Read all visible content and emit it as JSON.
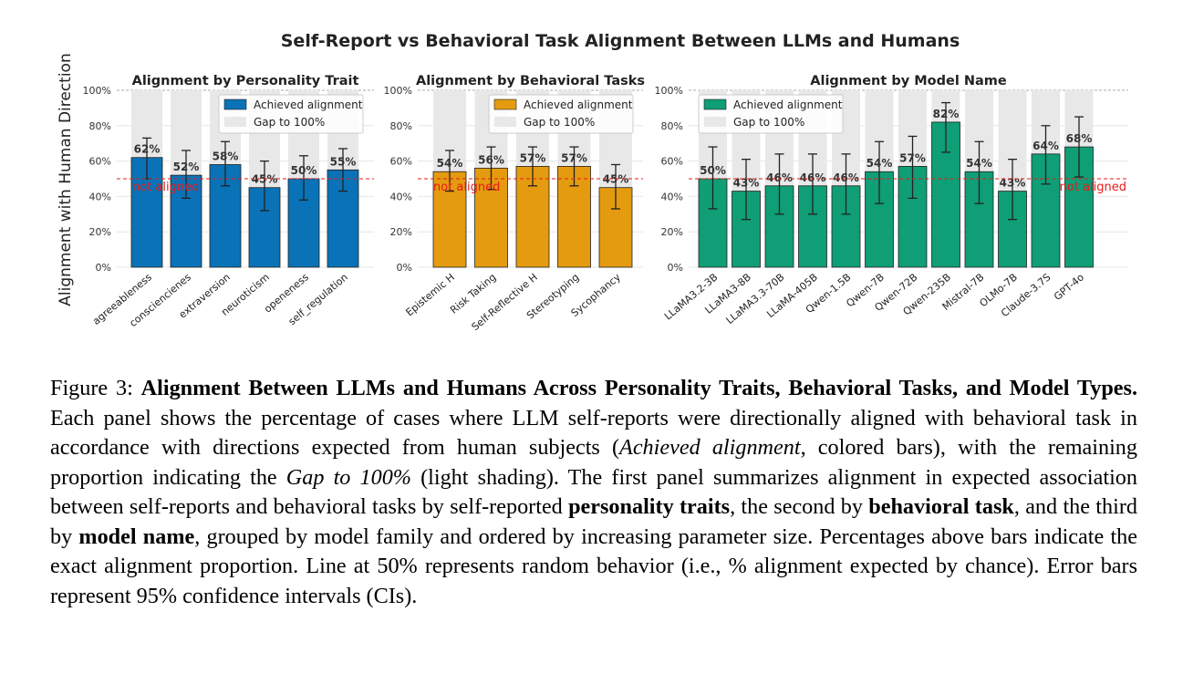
{
  "figure": {
    "suptitle": "Self-Report vs Behavioral Task Alignment Between LLMs and Humans",
    "ylabel": "Alignment with Human Direction",
    "legend": {
      "achieved": "Achieved alignment",
      "gap": "Gap to 100%"
    },
    "not_aligned_label": "not aligned",
    "colors": {
      "trait": "#0a72b6",
      "task": "#e49b0f",
      "model": "#0f9e76",
      "gap": "#e8e8e8",
      "line": "#e8191a"
    }
  },
  "chart_data": [
    {
      "type": "bar",
      "title": "Alignment by Personality Trait",
      "categories": [
        "agreeableness",
        "consciencienes",
        "extraversion",
        "neuroticism",
        "openeness",
        "self_regulation"
      ],
      "values": [
        62,
        52,
        58,
        45,
        50,
        55
      ],
      "value_labels": [
        "62%",
        "52%",
        "58%",
        "45%",
        "50%",
        "55%"
      ],
      "ci_low": [
        50,
        39,
        46,
        32,
        38,
        43
      ],
      "ci_high": [
        73,
        66,
        71,
        60,
        63,
        67
      ],
      "ylim": [
        0,
        100
      ],
      "yticks": [
        "0%",
        "20%",
        "40%",
        "60%",
        "80%",
        "100%"
      ],
      "reference_line": 50,
      "legend_position": "top-right",
      "color": "#0a72b6"
    },
    {
      "type": "bar",
      "title": "Alignment by Behavioral Tasks",
      "categories": [
        "Epistemic H",
        "Risk Taking",
        "Self-Reflective H",
        "Stereotyping",
        "Sycophancy"
      ],
      "values": [
        54,
        56,
        57,
        57,
        45
      ],
      "value_labels": [
        "54%",
        "56%",
        "57%",
        "57%",
        "45%"
      ],
      "ci_low": [
        43,
        44,
        46,
        46,
        33
      ],
      "ci_high": [
        66,
        68,
        68,
        68,
        58
      ],
      "ylim": [
        0,
        100
      ],
      "yticks": [
        "0%",
        "20%",
        "40%",
        "60%",
        "80%",
        "100%"
      ],
      "reference_line": 50,
      "legend_position": "top-right",
      "color": "#e49b0f"
    },
    {
      "type": "bar",
      "title": "Alignment by Model Name",
      "categories": [
        "LLaMA3.2-3B",
        "LLaMA3-8B",
        "LLaMA3.3-70B",
        "LLaMA-405B",
        "Qwen-1.5B",
        "Qwen-7B",
        "Qwen-72B",
        "Qwen-235B",
        "Mistral-7B",
        "OLMo-7B",
        "Claude-3.7S",
        "GPT-4o"
      ],
      "values": [
        50,
        43,
        46,
        46,
        46,
        54,
        57,
        82,
        54,
        43,
        64,
        68
      ],
      "value_labels": [
        "50%",
        "43%",
        "46%",
        "46%",
        "46%",
        "54%",
        "57%",
        "82%",
        "54%",
        "43%",
        "64%",
        "68%"
      ],
      "ci_low": [
        33,
        27,
        30,
        30,
        30,
        36,
        39,
        65,
        36,
        27,
        47,
        51
      ],
      "ci_high": [
        68,
        61,
        64,
        64,
        64,
        71,
        74,
        93,
        71,
        61,
        80,
        85
      ],
      "ylim": [
        0,
        100
      ],
      "yticks": [
        "0%",
        "20%",
        "40%",
        "60%",
        "80%",
        "100%"
      ],
      "reference_line": 50,
      "legend_position": "top-left",
      "color": "#0f9e76"
    }
  ],
  "caption": {
    "label": "Figure 3: ",
    "bold_title": "Alignment Between LLMs and Humans Across Personality Traits, Behavioral Tasks, and Model Types.",
    "t1": " Each panel shows the percentage of cases where LLM self-reports were directionally aligned with behavioral task in accordance with directions expected from human subjects (",
    "i1": "Achieved alignment",
    "t2": ", colored bars), with the remaining proportion indicating the ",
    "i2": "Gap to 100%",
    "t3": " (light shading). The first panel summarizes alignment in expected association between self-reports and behavioral tasks by self-reported ",
    "b1": "personality traits",
    "t4": ", the second by ",
    "b2": "behavioral task",
    "t5": ", and the third by ",
    "b3": "model name",
    "t6": ", grouped by model family and ordered by increasing parameter size. Percentages above bars indicate the exact alignment proportion. Line at 50% represents random behavior (i.e., % alignment expected by chance). Error bars represent 95% confidence intervals (CIs)."
  }
}
